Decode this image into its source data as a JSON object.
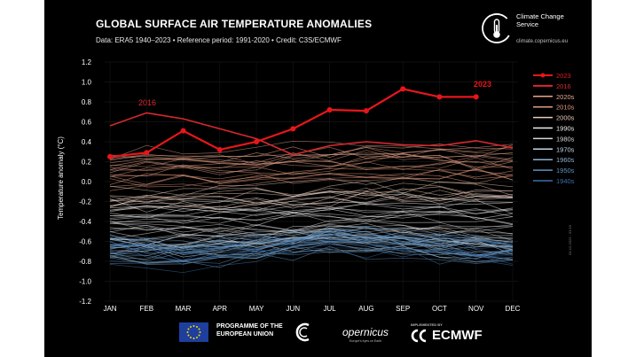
{
  "header": {
    "title": "GLOBAL SURFACE AIR TEMPERATURE ANOMALIES",
    "subtitle": "Data: ERA5 1940–2023 • Reference period: 1991-2020 • Credit: C3S/ECMWF"
  },
  "branding": {
    "c3s_name": "Climate Change Service",
    "c3s_url": "climate.copernicus.eu",
    "watermark": "03-12-2023 - 03:19",
    "programme": "PROGRAMME OF THE EUROPEAN UNION",
    "copernicus": "opernicus",
    "copernicus_sub": "Europe's eyes on Earth",
    "implemented_by": "IMPLEMENTED BY",
    "ecmwf": "ECMWF"
  },
  "colors": {
    "background": "#000000",
    "highlight_2023": "#e8161b",
    "highlight_2016": "#d9282e",
    "d2020s": "#e8a58c",
    "d2010s": "#e39a7c",
    "d2000s": "#ecc9b6",
    "d1990s": "#ededed",
    "d1980s": "#d6d6d6",
    "d1970s": "#c6d9e6",
    "d1960s": "#8db3d3",
    "d1950s": "#5f93c0",
    "d1940s": "#3b70a8"
  },
  "chart_data": {
    "type": "line",
    "title": "GLOBAL SURFACE AIR TEMPERATURE ANOMALIES",
    "xlabel": "",
    "ylabel": "Temperature anomaly (°C)",
    "categories": [
      "JAN",
      "FEB",
      "MAR",
      "APR",
      "MAY",
      "JUN",
      "JUL",
      "AUG",
      "SEP",
      "OCT",
      "NOV",
      "DEC"
    ],
    "ylim": [
      -1.2,
      1.2
    ],
    "yticks": [
      "1.2",
      "1.0",
      "0.8",
      "0.6",
      "0.4",
      "0.2",
      "0.0",
      "-0.2",
      "-0.4",
      "-0.6",
      "-0.8",
      "-1.0",
      "-1.2"
    ],
    "grid": true,
    "legend_position": "right",
    "highlight_series": [
      {
        "name": "2023",
        "label": "2023",
        "color": "#e8161b",
        "markers": true,
        "values": [
          0.25,
          0.29,
          0.51,
          0.32,
          0.4,
          0.53,
          0.72,
          0.71,
          0.93,
          0.85,
          0.85
        ]
      },
      {
        "name": "2016",
        "label": "2016",
        "color": "#d9282e",
        "markers": false,
        "values": [
          0.56,
          0.69,
          0.63,
          0.53,
          0.43,
          0.27,
          0.36,
          0.4,
          0.37,
          0.36,
          0.41,
          0.34
        ]
      }
    ],
    "decades": [
      {
        "name": "2020s",
        "color": "#e8a58c",
        "base": [
          0.18,
          0.22,
          0.24,
          0.2,
          0.22,
          0.24,
          0.26,
          0.27,
          0.28,
          0.27,
          0.26,
          0.28
        ]
      },
      {
        "name": "2010s",
        "color": "#e39a7c",
        "base": [
          0.05,
          0.07,
          0.09,
          0.07,
          0.08,
          0.08,
          0.12,
          0.13,
          0.12,
          0.14,
          0.12,
          0.11
        ]
      },
      {
        "name": "2000s",
        "color": "#ecc9b6",
        "base": [
          -0.16,
          -0.14,
          -0.13,
          -0.14,
          -0.13,
          -0.12,
          -0.08,
          -0.06,
          -0.08,
          -0.06,
          -0.08,
          -0.1
        ]
      },
      {
        "name": "1990s",
        "color": "#ededed",
        "base": [
          -0.3,
          -0.3,
          -0.32,
          -0.3,
          -0.3,
          -0.28,
          -0.26,
          -0.25,
          -0.27,
          -0.27,
          -0.29,
          -0.3
        ]
      },
      {
        "name": "1980s",
        "color": "#d6d6d6",
        "base": [
          -0.42,
          -0.42,
          -0.43,
          -0.44,
          -0.44,
          -0.42,
          -0.4,
          -0.41,
          -0.42,
          -0.42,
          -0.44,
          -0.44
        ]
      },
      {
        "name": "1970s",
        "color": "#c6d9e6",
        "base": [
          -0.6,
          -0.6,
          -0.6,
          -0.58,
          -0.57,
          -0.56,
          -0.52,
          -0.54,
          -0.56,
          -0.58,
          -0.6,
          -0.62
        ]
      },
      {
        "name": "1960s",
        "color": "#8db3d3",
        "base": [
          -0.64,
          -0.66,
          -0.66,
          -0.64,
          -0.62,
          -0.6,
          -0.56,
          -0.56,
          -0.6,
          -0.62,
          -0.64,
          -0.66
        ]
      },
      {
        "name": "1950s",
        "color": "#5f93c0",
        "base": [
          -0.72,
          -0.72,
          -0.74,
          -0.7,
          -0.68,
          -0.64,
          -0.6,
          -0.62,
          -0.64,
          -0.66,
          -0.7,
          -0.72
        ]
      },
      {
        "name": "1940s",
        "color": "#3b70a8",
        "base": [
          -0.66,
          -0.7,
          -0.76,
          -0.72,
          -0.66,
          -0.62,
          -0.58,
          -0.6,
          -0.62,
          -0.66,
          -0.7,
          -0.72
        ]
      }
    ]
  }
}
